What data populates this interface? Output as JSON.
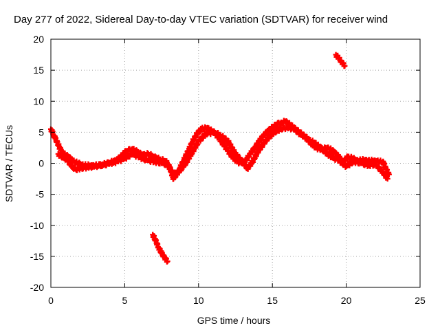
{
  "chart_data": {
    "type": "scatter",
    "title": "Day 277 of 2022, Sidereal Day-to-day VTEC variation (SDTVAR) for receiver wind",
    "xlabel": "GPS time / hours",
    "ylabel": "SDTVAR / TECUs",
    "xlim": [
      0,
      25
    ],
    "ylim": [
      -20,
      20
    ],
    "xticks": [
      "0",
      "5",
      "10",
      "15",
      "20",
      "25"
    ],
    "yticks": [
      "-20",
      "-15",
      "-10",
      "-5",
      "0",
      "5",
      "10",
      "15",
      "20"
    ],
    "grid": true,
    "legend": "none",
    "point_color": "#ff0000",
    "series": [
      {
        "name": "SDTVAR main trace",
        "x": [
          0.0,
          0.1,
          0.2,
          0.3,
          0.7,
          0.9,
          1.2,
          1.5,
          1.8,
          2.1,
          2.4,
          2.8,
          3.2,
          3.6,
          4.0,
          4.4,
          4.8,
          5.1,
          5.5,
          5.9,
          6.2,
          6.6,
          7.0,
          7.4,
          7.8,
          8.1,
          8.4,
          8.7,
          9.0,
          9.3,
          9.6,
          9.9,
          10.2,
          10.5,
          10.8,
          11.1,
          11.4,
          11.7,
          12.0,
          12.3,
          12.6,
          12.9,
          13.2,
          13.5,
          13.8,
          14.1,
          14.4,
          14.7,
          15.0,
          15.3,
          15.6,
          15.9,
          16.2,
          16.5,
          16.8,
          17.1,
          17.4,
          17.7,
          18.0,
          18.3,
          18.6,
          18.9,
          19.2,
          19.5,
          19.8,
          20.1,
          20.4,
          20.7,
          21.0,
          21.3,
          21.6,
          21.9,
          22.2,
          22.5,
          22.7,
          22.9
        ],
        "y": [
          5.5,
          5.0,
          4.5,
          4.0,
          2.0,
          1.5,
          1.0,
          0.4,
          0.0,
          -0.2,
          -0.4,
          -0.3,
          -0.4,
          -0.2,
          0.1,
          0.4,
          1.2,
          2.0,
          2.3,
          1.8,
          1.3,
          1.5,
          1.0,
          0.6,
          0.3,
          -1.0,
          -2.0,
          -1.0,
          0.5,
          2.0,
          3.5,
          4.8,
          5.5,
          5.7,
          5.4,
          4.8,
          4.0,
          3.0,
          2.0,
          1.0,
          0.3,
          0.0,
          0.5,
          1.5,
          2.5,
          3.5,
          4.5,
          5.2,
          5.8,
          6.3,
          6.6,
          6.7,
          6.2,
          5.6,
          5.0,
          4.5,
          3.8,
          3.0,
          2.5,
          2.2,
          2.5,
          2.3,
          1.8,
          1.0,
          0.2,
          1.0,
          0.8,
          0.5,
          0.4,
          0.6,
          0.3,
          0.5,
          0.2,
          0.3,
          -1.0,
          -1.8
        ]
      },
      {
        "name": "SDTVAR secondary trace",
        "x": [
          0.5,
          0.8,
          1.1,
          1.4,
          1.7,
          2.0,
          2.5,
          3.0,
          3.5,
          4.0,
          4.5,
          5.0,
          5.5,
          6.0,
          6.5,
          7.0,
          7.5,
          8.0,
          8.3,
          8.6,
          9.0,
          9.5,
          10.0,
          10.5,
          11.0,
          11.5,
          12.0,
          12.5,
          13.0,
          13.3,
          13.6,
          14.0,
          14.5,
          15.0,
          15.5,
          16.0,
          16.5,
          17.0,
          17.5,
          18.0,
          18.5,
          19.0,
          19.5,
          20.0,
          20.5,
          21.0,
          21.5,
          22.0,
          22.5,
          22.8
        ],
        "y": [
          1.5,
          1.0,
          0.6,
          -0.5,
          -1.0,
          -0.8,
          -0.6,
          -0.5,
          -0.2,
          0.0,
          0.3,
          0.8,
          1.5,
          1.0,
          0.5,
          0.3,
          0.0,
          -0.3,
          -2.5,
          -1.5,
          -0.5,
          1.5,
          3.5,
          4.8,
          5.0,
          4.5,
          3.5,
          1.5,
          0.2,
          -0.8,
          0.0,
          1.8,
          3.5,
          4.8,
          5.5,
          5.8,
          5.5,
          4.5,
          3.8,
          3.0,
          2.0,
          1.0,
          0.5,
          -0.5,
          0.3,
          0.0,
          -0.3,
          -0.2,
          -1.5,
          -2.5
        ]
      },
      {
        "name": "Outlier arc 1",
        "x": [
          6.9,
          7.1,
          7.3,
          7.5,
          7.7,
          7.9
        ],
        "y": [
          -11.5,
          -12.5,
          -13.6,
          -14.5,
          -15.2,
          -15.8
        ]
      },
      {
        "name": "Outlier arc 2",
        "x": [
          19.3,
          19.5,
          19.7,
          19.9
        ],
        "y": [
          17.5,
          16.9,
          16.3,
          15.7
        ]
      }
    ]
  }
}
